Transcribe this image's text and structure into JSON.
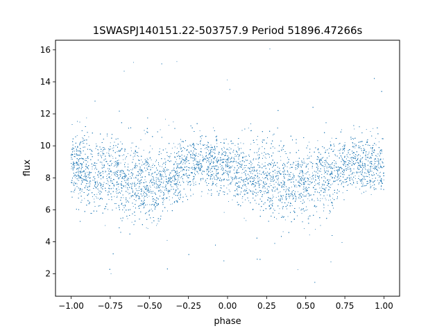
{
  "chart_data": {
    "type": "scatter",
    "title": "1SWASPJ140151.22-503757.9 Period 51896.47266s",
    "xlabel": "phase",
    "ylabel": "flux",
    "xlim": [
      -1.1,
      1.1
    ],
    "ylim": [
      0.6,
      16.6
    ],
    "xticks": [
      -1.0,
      -0.75,
      -0.5,
      -0.25,
      0.0,
      0.25,
      0.5,
      0.75,
      1.0
    ],
    "xtick_labels": [
      "−1.00",
      "−0.75",
      "−0.50",
      "−0.25",
      "0.00",
      "0.25",
      "0.50",
      "0.75",
      "1.00"
    ],
    "yticks": [
      2,
      4,
      6,
      8,
      10,
      12,
      14,
      16
    ],
    "ytick_labels": [
      "2",
      "4",
      "6",
      "8",
      "10",
      "12",
      "14",
      "16"
    ],
    "grid": false,
    "marker_color": "#1f77b4",
    "series": [
      {
        "x_range": [
          -1.0,
          1.0
        ],
        "profile_x": [
          -1.0,
          -0.9,
          -0.75,
          -0.6,
          -0.45,
          -0.25,
          -0.2,
          -0.1,
          0.0,
          0.1,
          0.25,
          0.4,
          0.55,
          0.75,
          0.8,
          0.9,
          1.0
        ],
        "profile_mean_y": [
          8.6,
          8.4,
          8.2,
          7.8,
          7.6,
          8.8,
          9.0,
          8.9,
          8.6,
          8.3,
          8.1,
          7.7,
          7.6,
          8.7,
          9.0,
          8.9,
          8.6
        ],
        "profile_spread": [
          1.3,
          1.5,
          1.6,
          1.7,
          1.6,
          1.2,
          1.1,
          1.1,
          1.2,
          1.5,
          1.6,
          1.6,
          1.6,
          1.2,
          1.1,
          1.1,
          1.3
        ],
        "point_count": 14000,
        "outlier_fraction": 0.015
      }
    ]
  }
}
